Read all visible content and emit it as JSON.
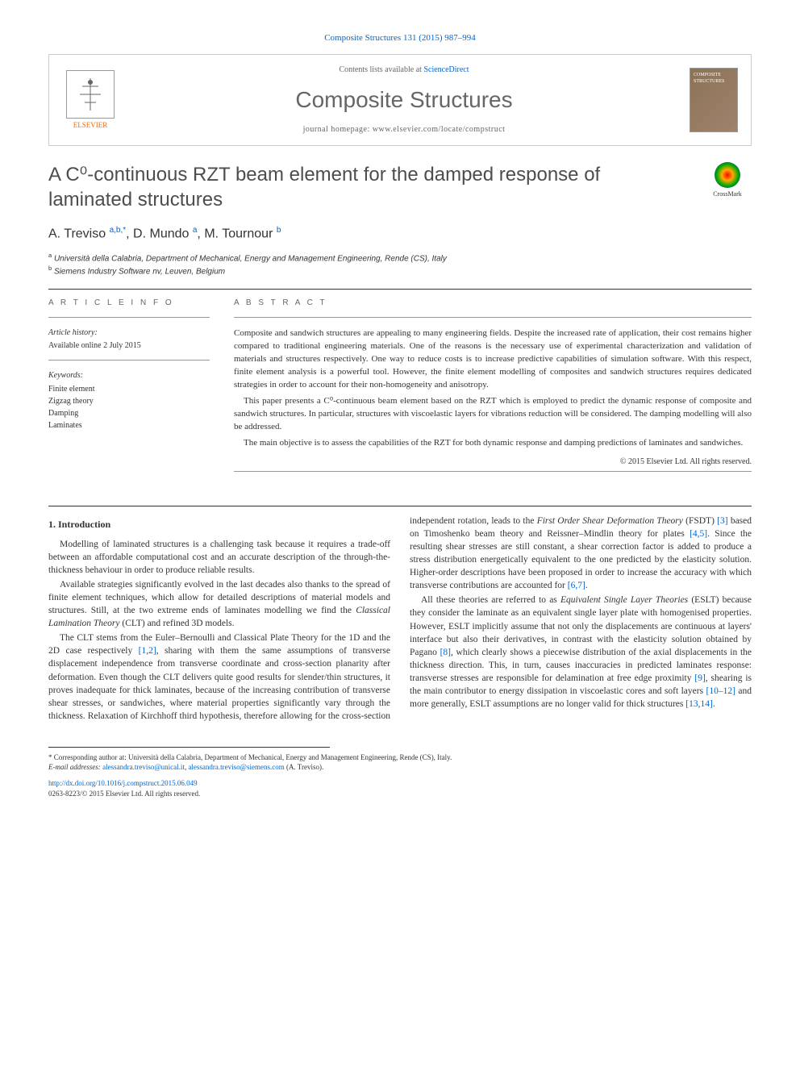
{
  "citation": "Composite Structures 131 (2015) 987–994",
  "header": {
    "contents_prefix": "Contents lists available at ",
    "contents_link": "ScienceDirect",
    "journal_name": "Composite Structures",
    "homepage_prefix": "journal homepage: ",
    "homepage_url": "www.elsevier.com/locate/compstruct",
    "publisher": "ELSEVIER",
    "cover_label": "COMPOSITE STRUCTURES"
  },
  "crossmark_label": "CrossMark",
  "title": "A C⁰-continuous RZT beam element for the damped response of laminated structures",
  "authors_html": "A. Treviso <sup>a,b,*</sup>, D. Mundo <sup>a</sup>, M. Tournour <sup>b</sup>",
  "affiliations": [
    {
      "sup": "a",
      "text": "Università della Calabria, Department of Mechanical, Energy and Management Engineering, Rende (CS), Italy"
    },
    {
      "sup": "b",
      "text": "Siemens Industry Software nv, Leuven, Belgium"
    }
  ],
  "article_info": {
    "heading": "A R T I C L E   I N F O",
    "history_label": "Article history:",
    "history_text": "Available online 2 July 2015",
    "keywords_label": "Keywords:",
    "keywords": [
      "Finite element",
      "Zigzag theory",
      "Damping",
      "Laminates"
    ]
  },
  "abstract": {
    "heading": "A B S T R A C T",
    "paragraphs": [
      "Composite and sandwich structures are appealing to many engineering fields. Despite the increased rate of application, their cost remains higher compared to traditional engineering materials. One of the reasons is the necessary use of experimental characterization and validation of materials and structures respectively. One way to reduce costs is to increase predictive capabilities of simulation software. With this respect, finite element analysis is a powerful tool. However, the finite element modelling of composites and sandwich structures requires dedicated strategies in order to account for their non-homogeneity and anisotropy.",
      "This paper presents a C⁰-continuous beam element based on the RZT which is employed to predict the dynamic response of composite and sandwich structures. In particular, structures with viscoelastic layers for vibrations reduction will be considered. The damping modelling will also be addressed.",
      "The main objective is to assess the capabilities of the RZT for both dynamic response and damping predictions of laminates and sandwiches."
    ],
    "copyright": "© 2015 Elsevier Ltd. All rights reserved."
  },
  "section1": {
    "heading": "1. Introduction",
    "p1": "Modelling of laminated structures is a challenging task because it requires a trade-off between an affordable computational cost and an accurate description of the through-the-thickness behaviour in order to produce reliable results.",
    "p2_a": "Available strategies significantly evolved in the last decades also thanks to the spread of finite element techniques, which allow for detailed descriptions of material models and structures. Still, at the two extreme ends of laminates modelling we find the ",
    "p2_i": "Classical Lamination Theory",
    "p2_b": " (CLT) and refined 3D models.",
    "p3_a": "The CLT stems from the Euler–Bernoulli and Classical Plate Theory for the 1D and the 2D case respectively ",
    "p3_ref1": "[1,2]",
    "p3_b": ", sharing with them the same assumptions of transverse displacement independence from transverse coordinate and cross-section planarity after deformation. Even though the CLT delivers quite good results for slender/thin structures, it proves inadequate for thick laminates, because of the increasing contribution of transverse shear stresses, or sandwiches, where material properties significantly vary through the thickness. Relaxation of Kirchhoff third hypothesis, therefore allowing for the cross-section independent rotation, leads to the ",
    "p3_i": "First Order Shear Deformation Theory",
    "p3_c": " (FSDT) ",
    "p3_ref2": "[3]",
    "p3_d": " based on Timoshenko beam theory and Reissner–Mindlin theory for plates ",
    "p3_ref3": "[4,5]",
    "p3_e": ". Since the resulting shear stresses are still constant, a shear correction factor is added to produce a stress distribution energetically equivalent to the one predicted by the elasticity solution. Higher-order descriptions have been proposed in order to increase the accuracy with which transverse contributions are accounted for ",
    "p3_ref4": "[6,7]",
    "p3_f": ".",
    "p4_a": "All these theories are referred to as ",
    "p4_i": "Equivalent Single Layer Theories",
    "p4_b": " (ESLT) because they consider the laminate as an equivalent single layer plate with homogenised properties. However, ESLT implicitly assume that not only the displacements are continuous at layers' interface but also their derivatives, in contrast with the elasticity solution obtained by Pagano ",
    "p4_ref1": "[8]",
    "p4_c": ", which clearly shows a piecewise distribution of the axial displacements in the thickness direction. This, in turn, causes inaccuracies in predicted laminates response: transverse stresses are responsible for delamination at free edge proximity ",
    "p4_ref2": "[9]",
    "p4_d": ", shearing is the main contributor to energy dissipation in viscoelastic cores and soft layers ",
    "p4_ref3": "[10–12]",
    "p4_e": " and more generally, ESLT assumptions are no longer valid for thick structures ",
    "p4_ref4": "[13,14]",
    "p4_f": "."
  },
  "footer": {
    "corr_label": "* Corresponding author at: Università della Calabria, Department of Mechanical, Energy and Management Engineering, Rende (CS), Italy.",
    "email_label": "E-mail addresses: ",
    "email1": "alessandra.treviso@unical.it",
    "email_sep": ", ",
    "email2": "alessandra.treviso@siemens.com",
    "email_author": " (A. Treviso).",
    "doi_url": "http://dx.doi.org/10.1016/j.compstruct.2015.06.049",
    "issn_line": "0263-8223/© 2015 Elsevier Ltd. All rights reserved."
  }
}
